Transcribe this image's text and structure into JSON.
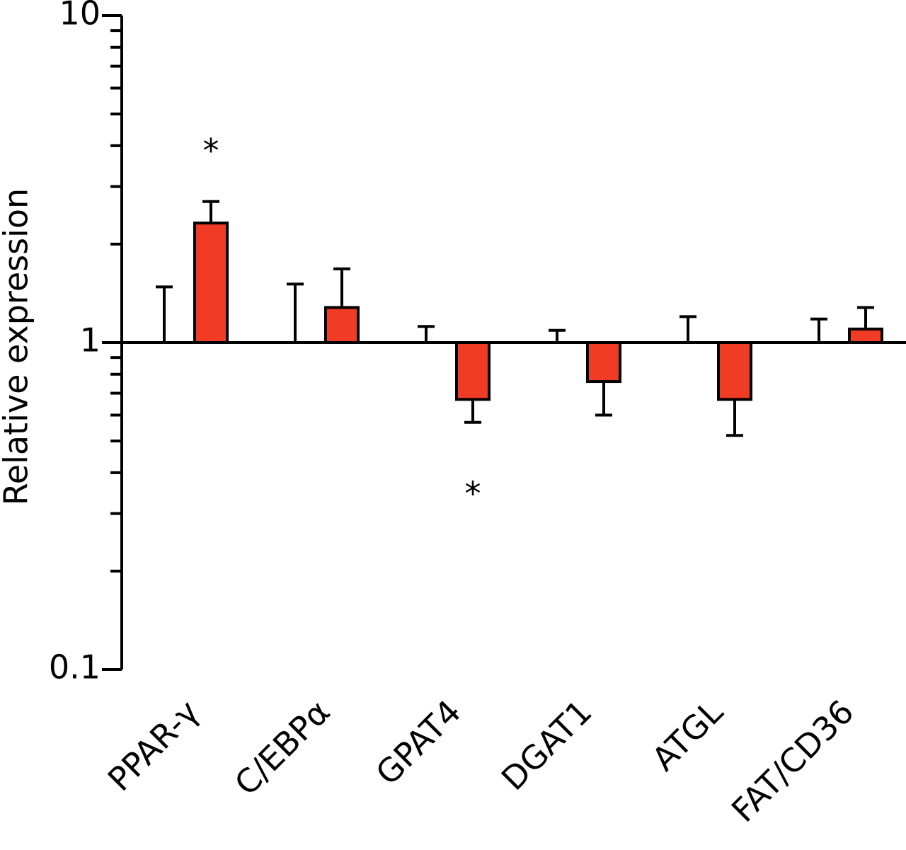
{
  "chart_data": {
    "type": "bar",
    "y_label": "Relative expression",
    "categories": [
      "PPAR-γ",
      "C/EBPα",
      "GPAT4",
      "DGAT1",
      "ATGL",
      "FAT/CD36"
    ],
    "series": [
      {
        "color": "#ffffff",
        "values": [
          1,
          1,
          1,
          1,
          1,
          1
        ],
        "errors": [
          0.48,
          0.51,
          0.12,
          0.09,
          0.2,
          0.18
        ]
      },
      {
        "color": "#f03c24",
        "values": [
          2.32,
          1.28,
          0.67,
          0.76,
          0.67,
          1.1
        ],
        "errors": [
          0.38,
          0.4,
          0.1,
          0.16,
          0.15,
          0.18
        ],
        "significance": [
          "*",
          null,
          "*",
          null,
          null,
          null
        ]
      }
    ],
    "log_scale": true,
    "ylim": [
      0.1,
      10
    ],
    "yticks": [
      0.1,
      1,
      10
    ],
    "minor_yticks": [
      0.2,
      0.3,
      0.4,
      0.5,
      0.6,
      0.7,
      0.8,
      0.9,
      2,
      3,
      4,
      5,
      6,
      7,
      8,
      9
    ],
    "xaxis_at": 1,
    "grid": false
  }
}
